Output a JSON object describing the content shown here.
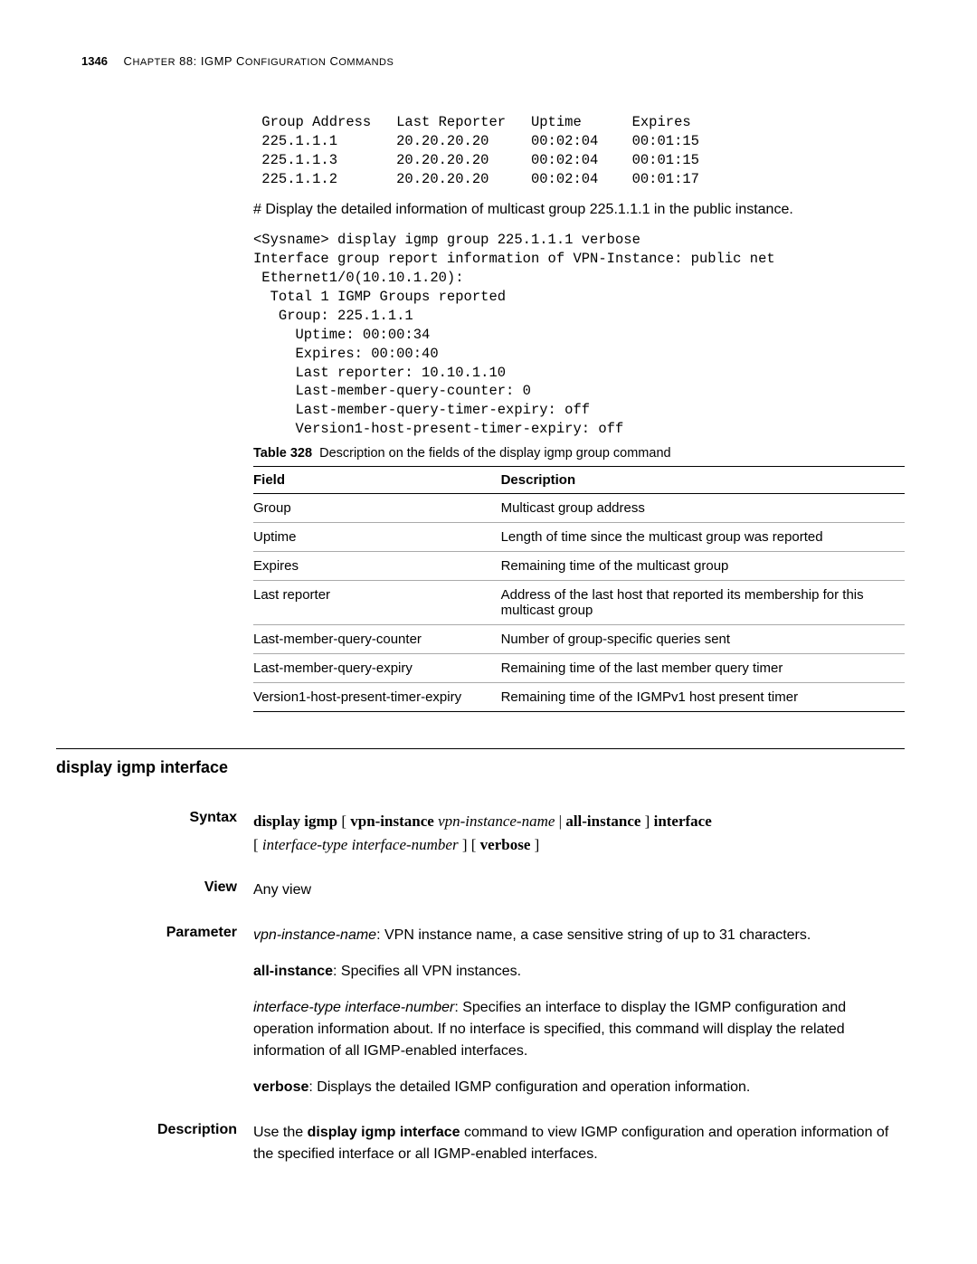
{
  "header": {
    "page_number": "1346",
    "chapter_label_prefix": "C",
    "chapter_label_rest": "HAPTER",
    "chapter_num_title": " 88: IGMP C",
    "chapter_rest": "ONFIGURATION",
    "chapter_tail": " C",
    "chapter_tail2": "OMMANDS"
  },
  "terminal_block1": " Group Address   Last Reporter   Uptime      Expires\n 225.1.1.1       20.20.20.20     00:02:04    00:01:15\n 225.1.1.3       20.20.20.20     00:02:04    00:01:15\n 225.1.1.2       20.20.20.20     00:02:04    00:01:17",
  "intro_text": "# Display the detailed information of multicast group 225.1.1.1 in the public instance.",
  "terminal_block2": "<Sysname> display igmp group 225.1.1.1 verbose\nInterface group report information of VPN-Instance: public net\n Ethernet1/0(10.10.1.20):\n  Total 1 IGMP Groups reported\n   Group: 225.1.1.1\n     Uptime: 00:00:34\n     Expires: 00:00:40\n     Last reporter: 10.10.1.10\n     Last-member-query-counter: 0\n     Last-member-query-timer-expiry: off\n     Version1-host-present-timer-expiry: off",
  "table": {
    "caption_label": "Table 328",
    "caption_text": "Description on the fields of the display igmp group command",
    "headers": [
      "Field",
      "Description"
    ],
    "rows": [
      [
        "Group",
        "Multicast group address"
      ],
      [
        "Uptime",
        "Length of time since the multicast group was reported"
      ],
      [
        "Expires",
        "Remaining time of the multicast group"
      ],
      [
        "Last reporter",
        "Address of the last host that reported its membership for this multicast group"
      ],
      [
        "Last-member-query-counter",
        "Number of group-specific queries sent"
      ],
      [
        "Last-member-query-expiry",
        "Remaining time of the last member query timer"
      ],
      [
        "Version1-host-present-timer-expiry",
        "Remaining time of the IGMPv1 host present timer"
      ]
    ]
  },
  "section": {
    "heading": "display igmp interface",
    "syntax_label": "Syntax",
    "syntax_parts": {
      "p1": "display igmp",
      "p2": " [ ",
      "p3": "vpn-instance",
      "p4": " ",
      "p5": "vpn-instance-name",
      "p6": " | ",
      "p7": "all-instance",
      "p8": " ] ",
      "p9": "interface",
      "p10": "[ ",
      "p11": "interface-type interface-number",
      "p12": " ] [ ",
      "p13": "verbose",
      "p14": " ]"
    },
    "view_label": "View",
    "view_text": "Any view",
    "parameter_label": "Parameter",
    "param1_emph": "vpn-instance-name",
    "param1_text": ": VPN instance name, a case sensitive string of up to 31 characters.",
    "param2_emph": "all-instance",
    "param2_text": ": Specifies all VPN instances.",
    "param3_emph": "interface-type interface-number",
    "param3_text": ": Specifies an interface to display the IGMP configuration and operation information about. If no interface is specified, this command will display the related information of all IGMP-enabled interfaces.",
    "param4_emph": "verbose",
    "param4_text": ": Displays the detailed IGMP configuration and operation information.",
    "description_label": "Description",
    "desc_pre": "Use the ",
    "desc_cmd": "display igmp interface",
    "desc_post": " command to view IGMP configuration and operation information of the specified interface or all IGMP-enabled interfaces."
  }
}
